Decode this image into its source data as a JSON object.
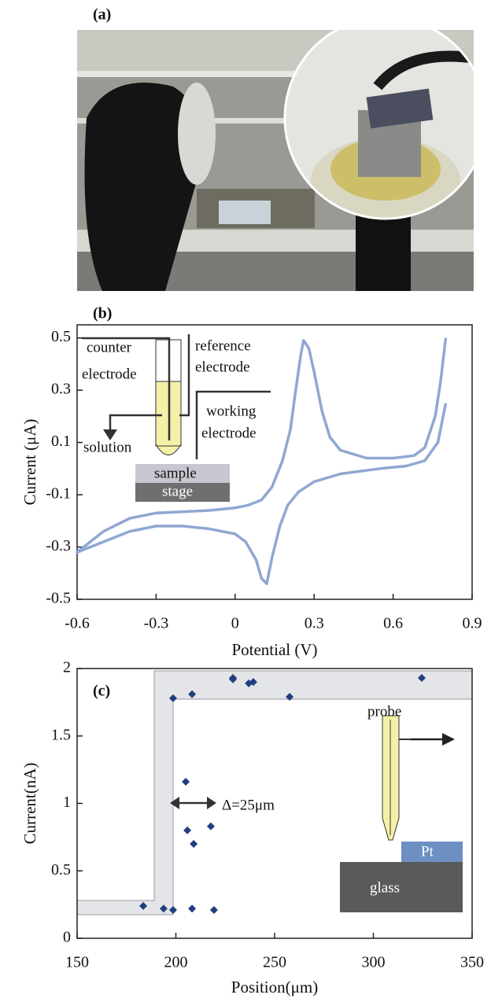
{
  "photo_label": "(a)",
  "chart_data": [
    {
      "type": "line",
      "panel_label": "(b)",
      "x_label": "Potential (V)",
      "y_label": "Current (μA)",
      "xlim": [
        -0.6,
        0.9
      ],
      "xticks": [
        -0.6,
        -0.3,
        0,
        0.3,
        0.6,
        0.9
      ],
      "ylim": [
        -0.5,
        0.55
      ],
      "yticks": [
        -0.5,
        -0.3,
        -0.1,
        0.1,
        0.3,
        0.5
      ],
      "color": "#8fa8d2",
      "x": [
        0.8,
        0.77,
        0.72,
        0.65,
        0.55,
        0.4,
        0.3,
        0.24,
        0.2,
        0.17,
        0.14,
        0.12,
        0.1,
        0.08,
        0.04,
        0,
        -0.1,
        -0.2,
        -0.3,
        -0.4,
        -0.5,
        -0.6,
        -0.5,
        -0.4,
        -0.3,
        -0.2,
        -0.1,
        0,
        0.05,
        0.1,
        0.14,
        0.18,
        0.21,
        0.23,
        0.25,
        0.26,
        0.28,
        0.3,
        0.33,
        0.36,
        0.4,
        0.5,
        0.6,
        0.68,
        0.72,
        0.76,
        0.78,
        0.8
      ],
      "values": [
        0.25,
        0.1,
        0.03,
        0.01,
        0.0,
        -0.02,
        -0.05,
        -0.09,
        -0.14,
        -0.22,
        -0.34,
        -0.44,
        -0.42,
        -0.35,
        -0.28,
        -0.25,
        -0.23,
        -0.22,
        -0.22,
        -0.24,
        -0.28,
        -0.32,
        -0.24,
        -0.19,
        -0.17,
        -0.165,
        -0.16,
        -0.15,
        -0.14,
        -0.12,
        -0.07,
        0.03,
        0.15,
        0.3,
        0.44,
        0.49,
        0.46,
        0.37,
        0.22,
        0.12,
        0.07,
        0.04,
        0.04,
        0.05,
        0.08,
        0.2,
        0.33,
        0.5
      ],
      "annotations": [
        "counter",
        "electrode",
        "reference",
        "electrode",
        "working",
        "electrode",
        "solution",
        "sample",
        "stage"
      ]
    },
    {
      "type": "scatter",
      "panel_label": "(c)",
      "x_label": "Position(μm)",
      "y_label": "Current(nA)",
      "xlim": [
        150,
        350
      ],
      "xticks": [
        150,
        200,
        250,
        300,
        350
      ],
      "ylim": [
        0,
        2
      ],
      "yticks": [
        0,
        0.5,
        1,
        1.5,
        2
      ],
      "color": "#1f3f80",
      "x": [
        183.5,
        193.8,
        198.6,
        208.2,
        219.3,
        198.6,
        208.2,
        205,
        205.8,
        209,
        217.7,
        228.9,
        228.9,
        236.9,
        239.2,
        257.6,
        324.5
      ],
      "values": [
        0.24,
        0.22,
        0.21,
        0.22,
        0.21,
        1.78,
        1.81,
        1.16,
        0.8,
        0.7,
        0.83,
        1.92,
        1.93,
        1.89,
        1.9,
        1.79,
        1.93
      ],
      "annotations": [
        "Δ=25μm",
        "probe",
        "Pt",
        "glass"
      ]
    }
  ]
}
